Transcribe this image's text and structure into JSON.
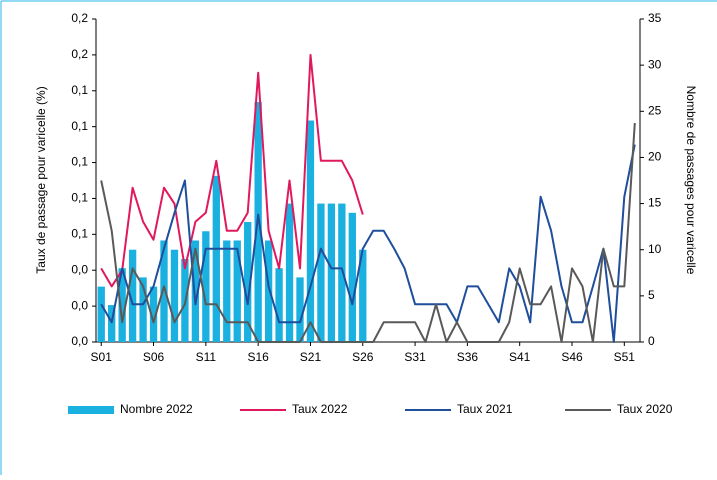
{
  "chart_data": {
    "type": "bar-line",
    "ylabel": "Taux de passage pour varicelle (%)",
    "y2label": "Nombre de passages pour varicelle",
    "categories": [
      "S01",
      null,
      null,
      null,
      null,
      "S06",
      null,
      null,
      null,
      null,
      "S11",
      null,
      null,
      null,
      null,
      "S16",
      null,
      null,
      null,
      null,
      "S21",
      null,
      null,
      null,
      null,
      "S26",
      null,
      null,
      null,
      null,
      "S31",
      null,
      null,
      null,
      null,
      "S36",
      null,
      null,
      null,
      null,
      "S41",
      null,
      null,
      null,
      null,
      "S46",
      null,
      null,
      null,
      null,
      "S51",
      null
    ],
    "ylim": [
      0,
      0.18
    ],
    "yticks": [
      {
        "value": 0,
        "label": "0,0"
      },
      {
        "value": 0.02,
        "label": "0,0"
      },
      {
        "value": 0.04,
        "label": "0,0"
      },
      {
        "value": 0.06,
        "label": "0,1"
      },
      {
        "value": 0.08,
        "label": "0,1"
      },
      {
        "value": 0.1,
        "label": "0,1"
      },
      {
        "value": 0.12,
        "label": "0,1"
      },
      {
        "value": 0.14,
        "label": "0,1"
      },
      {
        "value": 0.16,
        "label": "0,2"
      },
      {
        "value": 0.18,
        "label": "0,2"
      }
    ],
    "y2lim": [
      0,
      35
    ],
    "y2ticks": [
      0,
      5,
      10,
      15,
      20,
      25,
      30,
      35
    ],
    "legend": "bottom",
    "series": [
      {
        "name": "Nombre 2022",
        "kind": "bar",
        "axis": "y2",
        "color": "#1ab0e0",
        "values": [
          6,
          4,
          8,
          10,
          7,
          6,
          11,
          10,
          9,
          11,
          12,
          18,
          11,
          11,
          13,
          26,
          11,
          8,
          15,
          7,
          24,
          15,
          15,
          15,
          14,
          10,
          null,
          null,
          null,
          null,
          null,
          null,
          null,
          null,
          null,
          null,
          null,
          null,
          null,
          null,
          null,
          null,
          null,
          null,
          null,
          null,
          null,
          null,
          null,
          null,
          null,
          null
        ]
      },
      {
        "name": "Taux 2022",
        "kind": "line",
        "color": "#e0195f",
        "values": [
          0.041,
          0.031,
          0.04,
          0.086,
          0.067,
          0.057,
          0.086,
          0.077,
          0.041,
          0.067,
          0.072,
          0.101,
          0.062,
          0.062,
          0.072,
          0.15,
          0.062,
          0.041,
          0.09,
          0.041,
          0.16,
          0.101,
          0.101,
          0.101,
          0.09,
          0.071,
          null,
          null,
          null,
          null,
          null,
          null,
          null,
          null,
          null,
          null,
          null,
          null,
          null,
          null,
          null,
          null,
          null,
          null,
          null,
          null,
          null,
          null,
          null,
          null,
          null,
          null
        ]
      },
      {
        "name": "Taux 2021",
        "kind": "line",
        "color": "#1f4e9c",
        "values": [
          0.021,
          0.011,
          0.041,
          0.021,
          0.021,
          0.031,
          0.052,
          0.072,
          0.09,
          0.021,
          0.052,
          0.052,
          0.052,
          0.052,
          0.021,
          0.071,
          0.031,
          0.011,
          0.011,
          0.011,
          0.031,
          0.052,
          0.041,
          0.041,
          0.021,
          0.052,
          0.062,
          0.062,
          0.052,
          0.041,
          0.021,
          0.021,
          0.021,
          0.021,
          0.011,
          0.031,
          0.031,
          0.021,
          0.011,
          0.041,
          0.031,
          0.011,
          0.081,
          0.062,
          0.031,
          0.011,
          0.011,
          0.031,
          0.052,
          0,
          0.081,
          0.11
        ]
      },
      {
        "name": "Taux 2020",
        "kind": "line",
        "color": "#595959",
        "values": [
          0.09,
          0.062,
          0.011,
          0.041,
          0.031,
          0.011,
          0.031,
          0.011,
          0.021,
          0.052,
          0.021,
          0.021,
          0.011,
          0.011,
          0.011,
          0,
          0,
          0,
          0,
          0,
          0.011,
          0,
          0,
          0,
          0,
          0,
          0,
          0.011,
          0.011,
          0.011,
          0.011,
          0,
          0.021,
          0,
          0.011,
          0,
          0,
          0,
          0,
          0.011,
          0.041,
          0.021,
          0.021,
          0.031,
          0,
          0.041,
          0.031,
          0,
          0.052,
          0.031,
          0.031,
          0.122
        ]
      }
    ]
  }
}
